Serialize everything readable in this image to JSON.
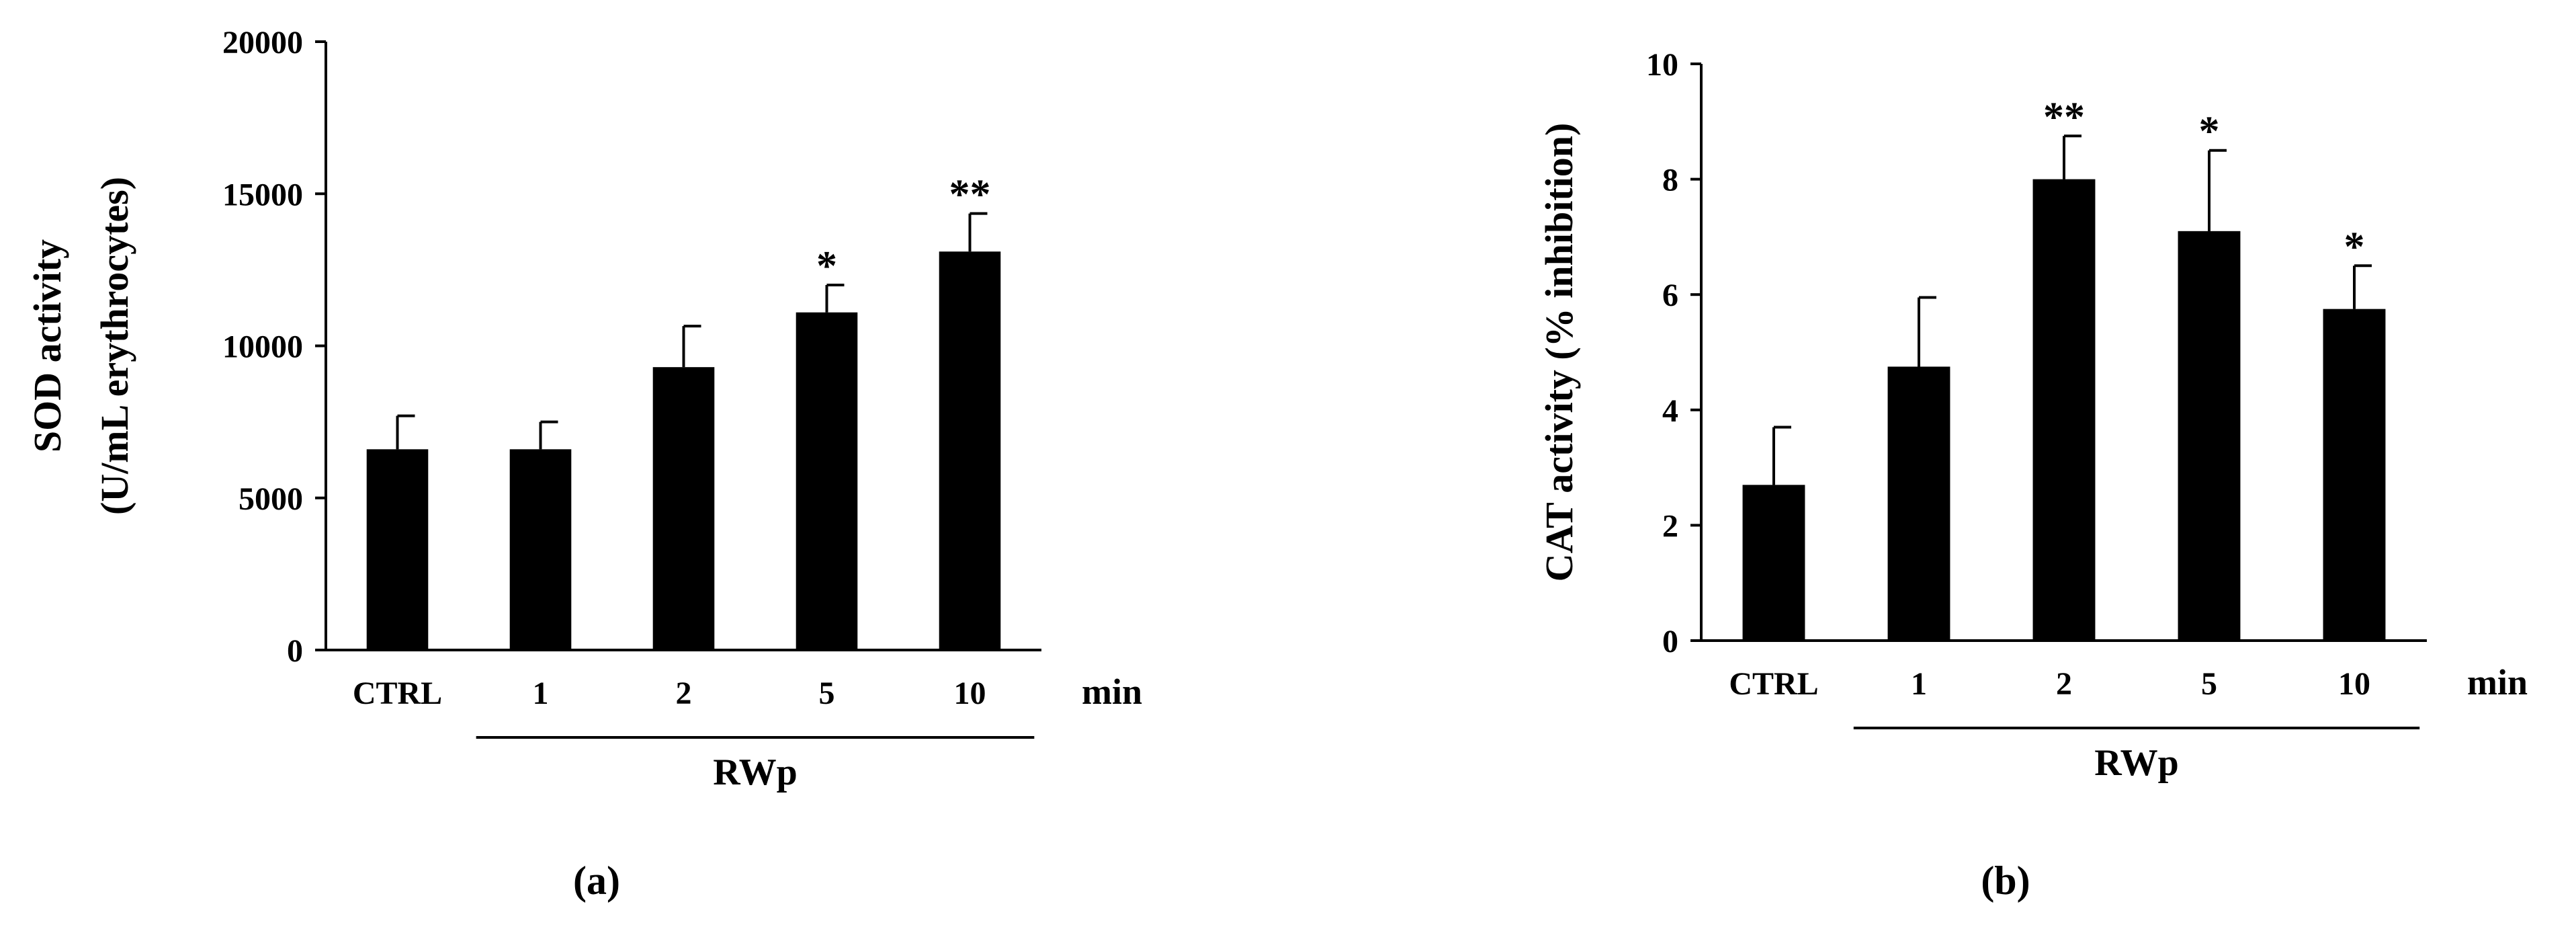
{
  "figure": {
    "panels": [
      "(a)",
      "(b)"
    ]
  },
  "chart_data": [
    {
      "type": "bar",
      "panel_label": "(a)",
      "ylabel_line1": "SOD activity",
      "ylabel_line2": "(U/mL erythrocytes)",
      "categories": [
        "CTRL",
        "1",
        "2",
        "5",
        "10"
      ],
      "values": [
        6600,
        6600,
        9300,
        11100,
        13100
      ],
      "errors": [
        1100,
        900,
        1350,
        900,
        1250
      ],
      "significance": [
        "",
        "",
        "",
        "*",
        "**"
      ],
      "ylim": [
        0,
        20000
      ],
      "yticks": [
        0,
        5000,
        10000,
        15000,
        20000
      ],
      "ytick_labels": [
        "0",
        "5000",
        "10000",
        "15000",
        "20000"
      ],
      "x_unit": "min",
      "group_label": "RWp",
      "group_start_index": 1,
      "bar_color": "#000000",
      "grid": false
    },
    {
      "type": "bar",
      "panel_label": "(b)",
      "ylabel_line1": "CAT activity (% inhibition)",
      "ylabel_line2": "",
      "categories": [
        "CTRL",
        "1",
        "2",
        "5",
        "10"
      ],
      "values": [
        2.7,
        4.75,
        8.0,
        7.1,
        5.75
      ],
      "errors": [
        1.0,
        1.2,
        0.75,
        1.4,
        0.75
      ],
      "significance": [
        "",
        "",
        "**",
        "*",
        "*"
      ],
      "ylim": [
        0,
        10
      ],
      "yticks": [
        0,
        2,
        4,
        6,
        8,
        10
      ],
      "ytick_labels": [
        "0",
        "2",
        "4",
        "6",
        "8",
        "10"
      ],
      "x_unit": "min",
      "group_label": "RWp",
      "group_start_index": 1,
      "bar_color": "#000000",
      "grid": false
    }
  ]
}
